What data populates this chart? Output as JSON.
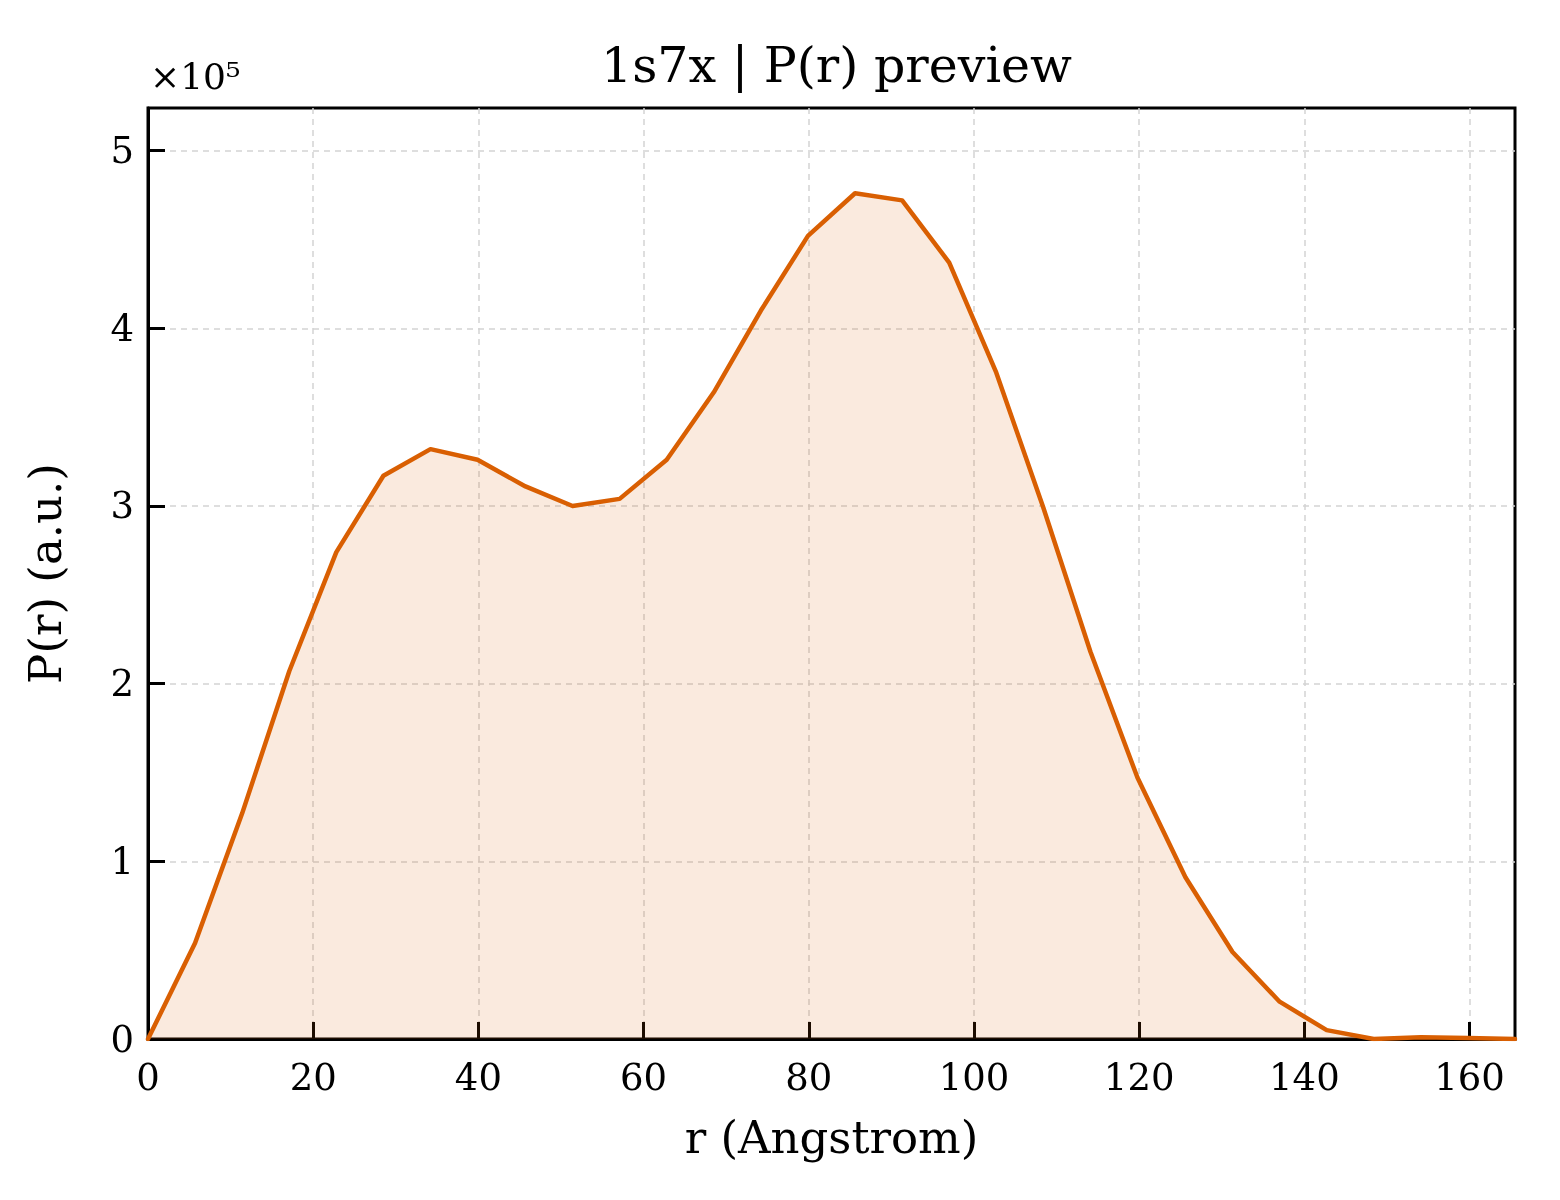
{
  "chart_data": {
    "type": "area",
    "title": "1s7x | P(r) preview",
    "xlabel": "r (Angstrom)",
    "ylabel": "P(r) (a.u.)",
    "annotations": [
      "×10⁵"
    ],
    "x": [
      0,
      5.7,
      11.4,
      17.1,
      22.8,
      28.5,
      34.2,
      39.9,
      45.7,
      51.4,
      57.1,
      62.8,
      68.5,
      74.2,
      79.9,
      85.6,
      91.3,
      97.0,
      102.7,
      108.4,
      114.1,
      119.8,
      125.6,
      131.3,
      137.0,
      142.7,
      148.4,
      154.1,
      159.8,
      165.5
    ],
    "series": [
      {
        "color": "#d95f02",
        "values": [
          0,
          0.54,
          1.27,
          2.07,
          2.74,
          3.17,
          3.32,
          3.26,
          3.11,
          3.0,
          3.04,
          3.26,
          3.64,
          4.1,
          4.52,
          4.76,
          4.72,
          4.37,
          3.75,
          2.99,
          2.18,
          1.47,
          0.91,
          0.49,
          0.21,
          0.05,
          0.0,
          0.01,
          0.005,
          0.0
        ]
      }
    ],
    "xlim": [
      0,
      165.5
    ],
    "xticks": [
      0,
      20,
      40,
      60,
      80,
      100,
      120,
      140,
      160
    ],
    "ylim": [
      0,
      5.24
    ],
    "yticks": [
      0,
      1,
      2,
      3,
      4,
      5
    ],
    "grid": true,
    "marker": "none"
  }
}
